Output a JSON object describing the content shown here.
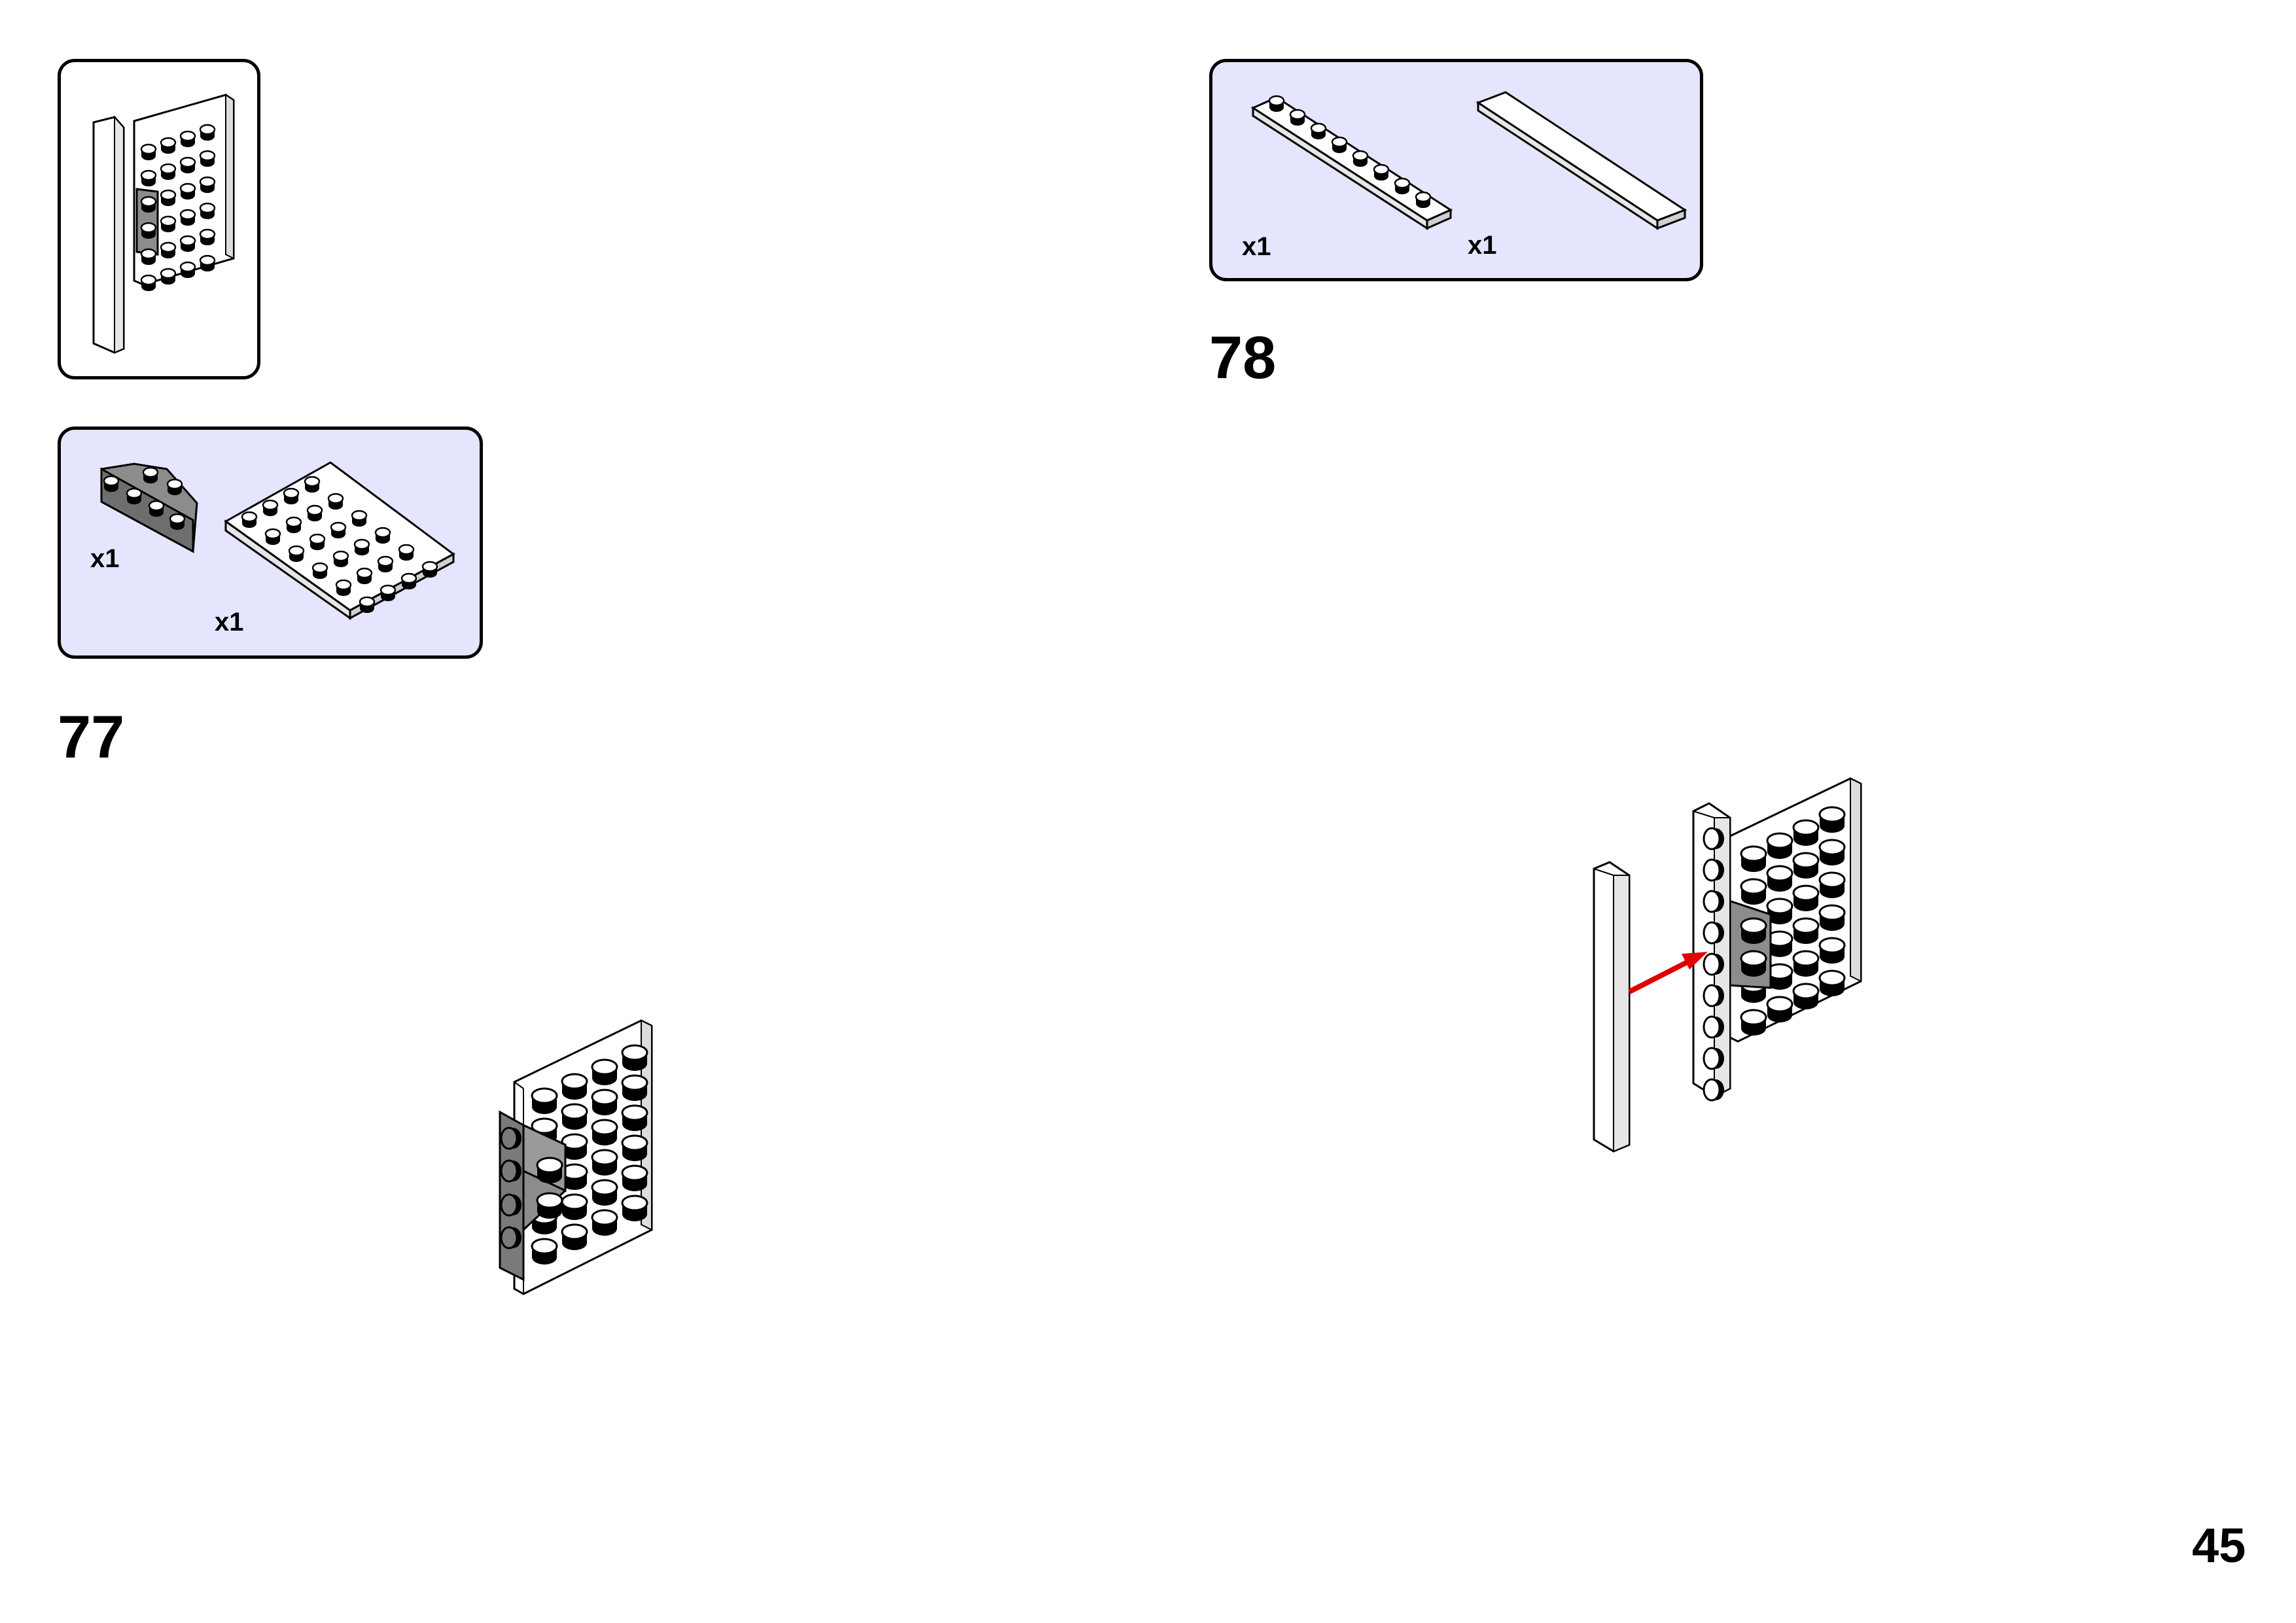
{
  "steps": [
    {
      "number": "77",
      "parts": [
        {
          "qty": "x1"
        },
        {
          "qty": "x1"
        }
      ]
    },
    {
      "number": "78",
      "parts": [
        {
          "qty": "x1"
        },
        {
          "qty": "x1"
        }
      ]
    }
  ],
  "page_number": "45",
  "colors": {
    "callout_bg": "#e5e5fd",
    "part_white": "#ffffff",
    "part_gray": "#8c8c8c",
    "arrow": "#e00000",
    "stud": "#000000"
  }
}
